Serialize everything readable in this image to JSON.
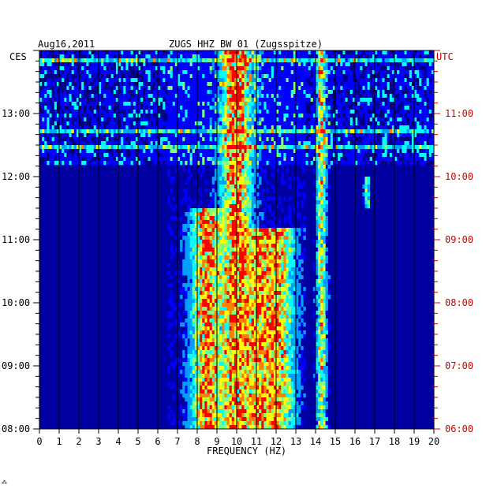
{
  "chart_data": {
    "type": "heatmap",
    "title": "ZUGS HHZ BW 01 (Zugsspitze)",
    "date": "Aug16,2011",
    "xlabel": "FREQUENCY (HZ)",
    "x_ticks": [
      "0",
      "1",
      "2",
      "3",
      "4",
      "5",
      "6",
      "7",
      "8",
      "9",
      "10",
      "11",
      "12",
      "13",
      "14",
      "15",
      "16",
      "17",
      "18",
      "19",
      "20"
    ],
    "xlim": [
      0,
      20
    ],
    "left_axis": {
      "timezone": "CES",
      "tick_labels": [
        "13:00",
        "12:00",
        "11:00",
        "10:00",
        "09:00",
        "08:00"
      ],
      "range": [
        "08:00",
        "14:00"
      ]
    },
    "right_axis": {
      "timezone": "UTC",
      "tick_labels": [
        "11:00",
        "10:00",
        "09:00",
        "08:00",
        "07:00",
        "06:00"
      ],
      "range": [
        "06:00",
        "12:00"
      ],
      "color": "#cc0000"
    },
    "colormap": [
      "#000080",
      "#0000ff",
      "#00a0ff",
      "#00ffff",
      "#80ff80",
      "#ffff00",
      "#ff8000",
      "#ff0000"
    ],
    "background_color": "#0000a0",
    "grid": true,
    "dominant_frequency_bands_hz": [
      {
        "center": 8.5,
        "intensity": "high",
        "active": [
          "08:00",
          "11:30"
        ]
      },
      {
        "center": 10.0,
        "intensity": "high",
        "active": [
          "08:00",
          "14:00"
        ]
      },
      {
        "center": 11.2,
        "intensity": "medium",
        "active": [
          "08:00",
          "11:10"
        ]
      },
      {
        "center": 12.2,
        "intensity": "medium",
        "active": [
          "08:00",
          "11:10"
        ]
      },
      {
        "center": 14.3,
        "intensity": "medium",
        "active": [
          "08:00",
          "14:00"
        ]
      },
      {
        "center": 16.6,
        "intensity": "low",
        "active": [
          "11:30",
          "12:00"
        ]
      }
    ],
    "broadband_periods": [
      {
        "start": "12:10",
        "end": "14:00",
        "intensity": "high"
      }
    ]
  }
}
